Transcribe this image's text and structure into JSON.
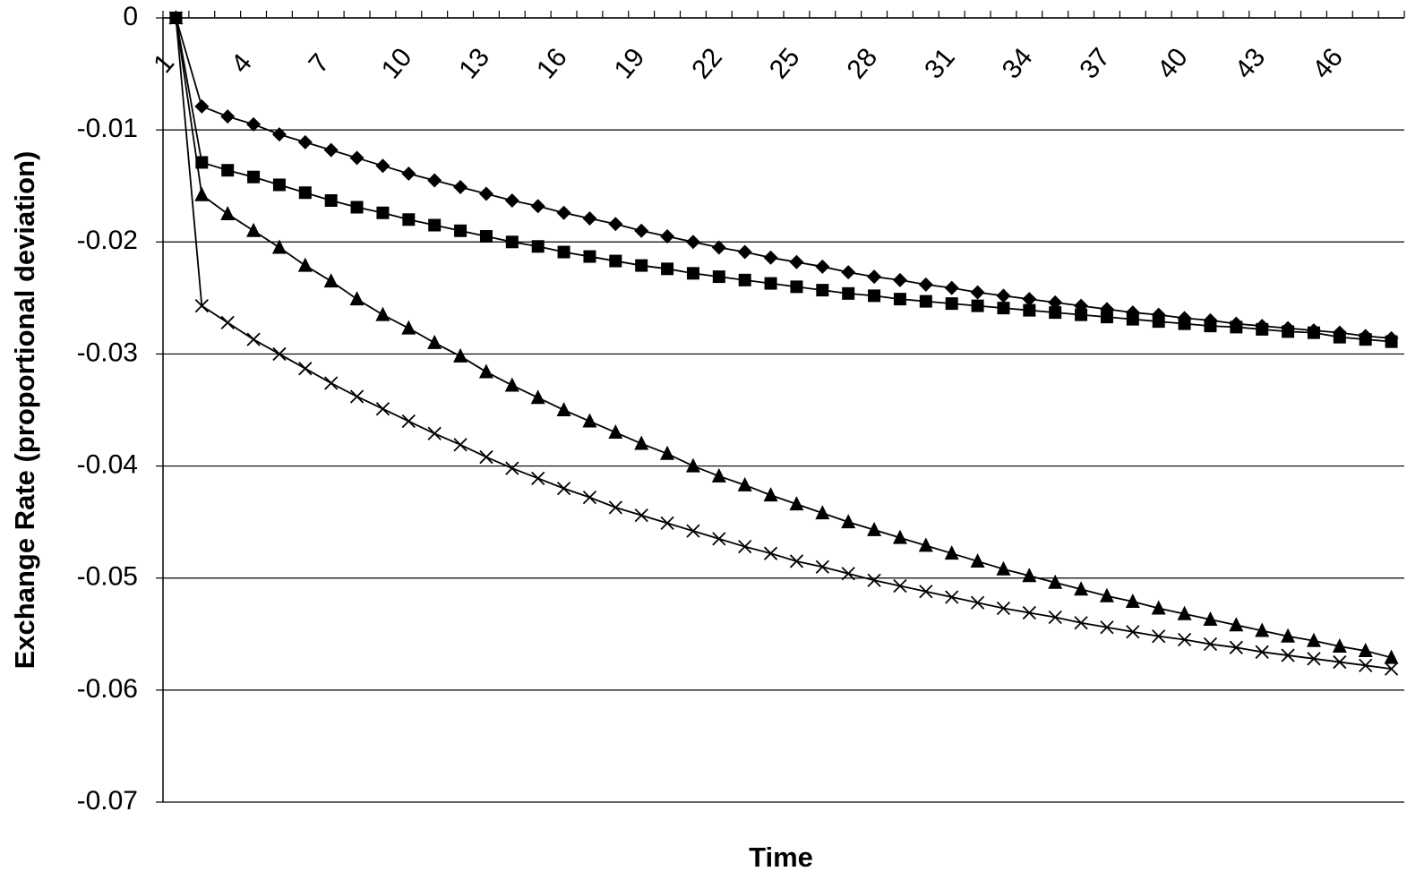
{
  "chart_data": {
    "type": "line",
    "x_label": "Time",
    "y_label": "Exchange Rate (proportional deviation)",
    "categories": [
      1,
      null,
      null,
      4,
      null,
      null,
      7,
      null,
      null,
      10,
      null,
      null,
      13,
      null,
      null,
      16,
      null,
      null,
      19,
      null,
      null,
      22,
      null,
      null,
      25,
      null,
      null,
      28,
      null,
      null,
      31,
      null,
      null,
      34,
      null,
      null,
      37,
      null,
      null,
      40,
      null,
      null,
      43,
      null,
      null,
      46,
      null,
      null
    ],
    "ylim": [
      -0.07,
      0
    ],
    "yticks": [
      0,
      -0.01,
      -0.02,
      -0.03,
      -0.04,
      -0.05,
      -0.06,
      -0.07
    ],
    "grid": true,
    "series": [
      {
        "color": "#000000",
        "marker": "diamond",
        "values": [
          0,
          -0.0079,
          -0.0088,
          -0.0095,
          -0.0104,
          -0.0111,
          -0.0118,
          -0.0125,
          -0.0132,
          -0.0139,
          -0.0145,
          -0.0151,
          -0.0157,
          -0.0163,
          -0.0168,
          -0.0174,
          -0.0179,
          -0.0184,
          -0.019,
          -0.0195,
          -0.02,
          -0.0205,
          -0.0209,
          -0.0214,
          -0.0218,
          -0.0222,
          -0.0227,
          -0.0231,
          -0.0234,
          -0.0238,
          -0.0241,
          -0.0245,
          -0.0248,
          -0.0251,
          -0.0254,
          -0.0257,
          -0.026,
          -0.0263,
          -0.0265,
          -0.0268,
          -0.027,
          -0.0273,
          -0.0275,
          -0.0277,
          -0.0279,
          -0.0281,
          -0.0284,
          -0.0286
        ]
      },
      {
        "color": "#000000",
        "marker": "square",
        "values": [
          0,
          -0.0129,
          -0.0136,
          -0.0142,
          -0.0149,
          -0.0156,
          -0.0163,
          -0.0169,
          -0.0174,
          -0.018,
          -0.0185,
          -0.019,
          -0.0195,
          -0.02,
          -0.0204,
          -0.0209,
          -0.0213,
          -0.0217,
          -0.0221,
          -0.0224,
          -0.0228,
          -0.0231,
          -0.0234,
          -0.0237,
          -0.024,
          -0.0243,
          -0.0246,
          -0.0248,
          -0.0251,
          -0.0253,
          -0.0255,
          -0.0257,
          -0.0259,
          -0.0261,
          -0.0263,
          -0.0265,
          -0.0267,
          -0.0269,
          -0.0271,
          -0.0273,
          -0.0275,
          -0.0276,
          -0.0278,
          -0.028,
          -0.0281,
          -0.0285,
          -0.0287,
          -0.0289
        ]
      },
      {
        "color": "#000000",
        "marker": "triangle",
        "values": [
          0,
          -0.0158,
          -0.0175,
          -0.019,
          -0.0205,
          -0.0221,
          -0.0235,
          -0.0251,
          -0.0265,
          -0.0277,
          -0.029,
          -0.0302,
          -0.0316,
          -0.0328,
          -0.0339,
          -0.035,
          -0.036,
          -0.037,
          -0.038,
          -0.0389,
          -0.04,
          -0.0409,
          -0.0417,
          -0.0426,
          -0.0434,
          -0.0442,
          -0.045,
          -0.0457,
          -0.0464,
          -0.0471,
          -0.0478,
          -0.0485,
          -0.0492,
          -0.0498,
          -0.0504,
          -0.051,
          -0.0516,
          -0.0521,
          -0.0527,
          -0.0532,
          -0.0537,
          -0.0542,
          -0.0547,
          -0.0552,
          -0.0556,
          -0.0561,
          -0.0565,
          -0.0571
        ]
      },
      {
        "color": "#000000",
        "marker": "x",
        "values": [
          0,
          -0.0257,
          -0.0272,
          -0.0287,
          -0.03,
          -0.0313,
          -0.0326,
          -0.0338,
          -0.0349,
          -0.036,
          -0.0371,
          -0.0381,
          -0.0392,
          -0.0402,
          -0.0411,
          -0.042,
          -0.0428,
          -0.0437,
          -0.0444,
          -0.0451,
          -0.0458,
          -0.0465,
          -0.0472,
          -0.0478,
          -0.0485,
          -0.049,
          -0.0496,
          -0.0502,
          -0.0507,
          -0.0512,
          -0.0517,
          -0.0522,
          -0.0527,
          -0.0531,
          -0.0535,
          -0.054,
          -0.0544,
          -0.0548,
          -0.0552,
          -0.0555,
          -0.0559,
          -0.0562,
          -0.0566,
          -0.0569,
          -0.0572,
          -0.0575,
          -0.0578,
          -0.0581
        ]
      }
    ]
  }
}
